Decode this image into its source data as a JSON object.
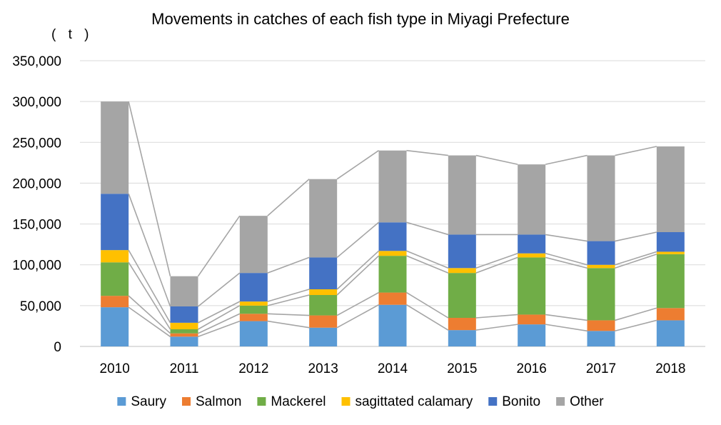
{
  "chart_data": {
    "type": "bar",
    "stacked": true,
    "title": "Movements in catches of each fish type in Miyagi Prefecture",
    "unit_label": "( t )",
    "xlabel": "",
    "ylabel": "",
    "ylim": [
      0,
      350000
    ],
    "yticks": [
      0,
      50000,
      100000,
      150000,
      200000,
      250000,
      300000,
      350000
    ],
    "ytick_labels": [
      "0",
      "50,000",
      "100,000",
      "150,000",
      "200,000",
      "250,000",
      "300,000",
      "350,000"
    ],
    "grid": true,
    "series_lines": true,
    "legend_position": "bottom",
    "categories": [
      "2010",
      "2011",
      "2012",
      "2013",
      "2014",
      "2015",
      "2016",
      "2017",
      "2018"
    ],
    "series": [
      {
        "name": "Saury",
        "color": "#5B9BD5",
        "values": [
          48000,
          12000,
          31000,
          23000,
          51000,
          20000,
          27000,
          19000,
          32000
        ]
      },
      {
        "name": "Salmon",
        "color": "#ED7D31",
        "values": [
          14000,
          4000,
          9000,
          15000,
          15000,
          15000,
          12000,
          13000,
          15000
        ]
      },
      {
        "name": "Mackerel",
        "color": "#70AD47",
        "values": [
          41000,
          5000,
          10000,
          25000,
          45000,
          55000,
          70000,
          64000,
          66000
        ]
      },
      {
        "name": "sagittated calamary",
        "color": "#FFC000",
        "values": [
          15000,
          8000,
          5000,
          7000,
          6000,
          6000,
          5000,
          4000,
          3000
        ]
      },
      {
        "name": "Bonito",
        "color": "#4472C4",
        "values": [
          69000,
          20000,
          35000,
          39000,
          35000,
          41000,
          23000,
          29000,
          24000
        ]
      },
      {
        "name": "Other",
        "color": "#A5A5A5",
        "values": [
          113000,
          37000,
          70000,
          96000,
          88000,
          97000,
          86000,
          105000,
          105000
        ]
      }
    ]
  }
}
